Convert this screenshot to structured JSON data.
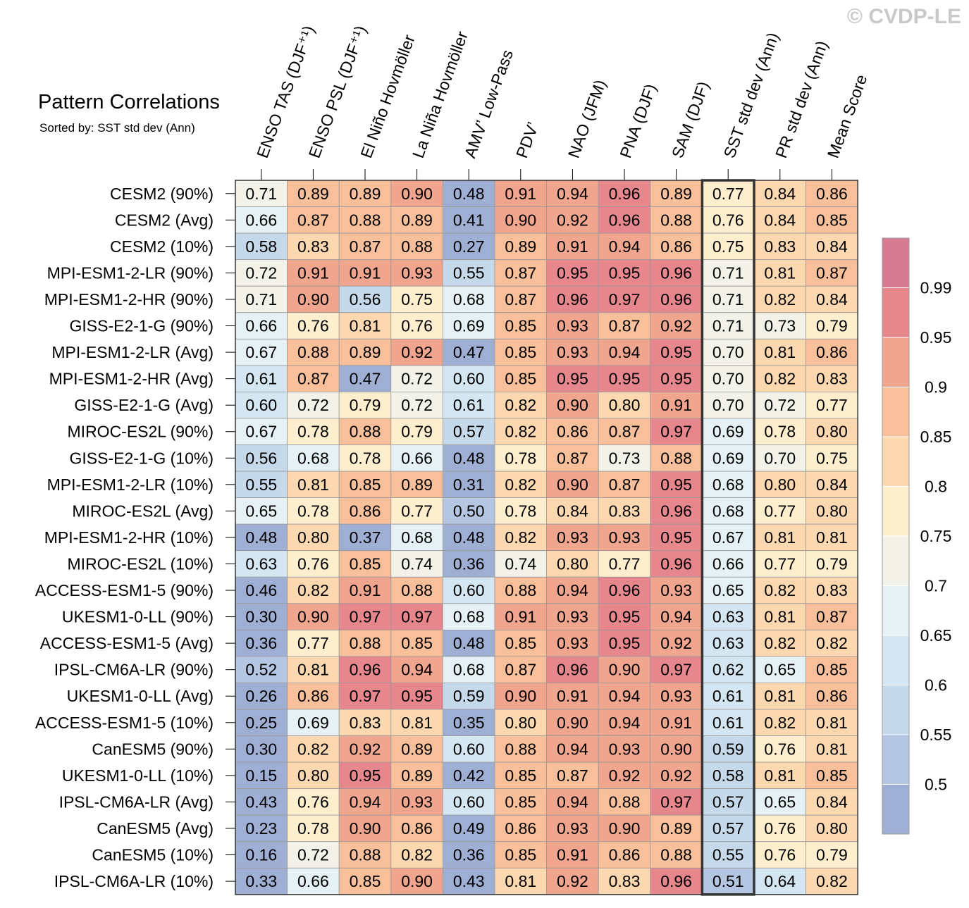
{
  "chart_data": {
    "type": "heatmap",
    "title": "Pattern Correlations",
    "subtitle": "Sorted by: SST std dev (Ann)",
    "copyright": "© CVDP-LE",
    "highlight_column": "SST std dev (Ann)",
    "columns": [
      "ENSO TAS (DJF⁺¹)",
      "ENSO PSL (DJF⁺¹)",
      "El Niño Hovmöller",
      "La Niña Hovmöller",
      "AMV’ Low-Pass",
      "PDV’",
      "NAO (JFM)",
      "PNA (DJF)",
      "SAM (DJF)",
      "SST std dev (Ann)",
      "PR std dev (Ann)",
      "Mean Score"
    ],
    "rows": [
      {
        "label": "CESM2 (90%)",
        "values": [
          "0.71",
          "0.89",
          "0.89",
          "0.90",
          "0.48",
          "0.91",
          "0.94",
          "0.96",
          "0.89",
          "0.77",
          "0.84",
          "0.86"
        ]
      },
      {
        "label": "CESM2 (Avg)",
        "values": [
          "0.66",
          "0.87",
          "0.88",
          "0.89",
          "0.41",
          "0.90",
          "0.92",
          "0.96",
          "0.88",
          "0.76",
          "0.84",
          "0.85"
        ]
      },
      {
        "label": "CESM2 (10%)",
        "values": [
          "0.58",
          "0.83",
          "0.87",
          "0.88",
          "0.27",
          "0.89",
          "0.91",
          "0.94",
          "0.86",
          "0.75",
          "0.83",
          "0.84"
        ]
      },
      {
        "label": "MPI-ESM1-2-LR (90%)",
        "values": [
          "0.72",
          "0.91",
          "0.91",
          "0.93",
          "0.55",
          "0.87",
          "0.95",
          "0.95",
          "0.96",
          "0.71",
          "0.81",
          "0.87"
        ]
      },
      {
        "label": "MPI-ESM1-2-HR (90%)",
        "values": [
          "0.71",
          "0.90",
          "0.56",
          "0.75",
          "0.68",
          "0.87",
          "0.96",
          "0.97",
          "0.96",
          "0.71",
          "0.82",
          "0.84"
        ]
      },
      {
        "label": "GISS-E2-1-G (90%)",
        "values": [
          "0.66",
          "0.76",
          "0.81",
          "0.76",
          "0.69",
          "0.85",
          "0.93",
          "0.87",
          "0.92",
          "0.71",
          "0.73",
          "0.79"
        ]
      },
      {
        "label": "MPI-ESM1-2-LR (Avg)",
        "values": [
          "0.67",
          "0.88",
          "0.89",
          "0.92",
          "0.47",
          "0.85",
          "0.93",
          "0.94",
          "0.95",
          "0.70",
          "0.81",
          "0.86"
        ]
      },
      {
        "label": "MPI-ESM1-2-HR (Avg)",
        "values": [
          "0.61",
          "0.87",
          "0.47",
          "0.72",
          "0.60",
          "0.85",
          "0.95",
          "0.95",
          "0.95",
          "0.70",
          "0.82",
          "0.83"
        ]
      },
      {
        "label": "GISS-E2-1-G (Avg)",
        "values": [
          "0.60",
          "0.72",
          "0.79",
          "0.72",
          "0.61",
          "0.82",
          "0.90",
          "0.80",
          "0.91",
          "0.70",
          "0.72",
          "0.77"
        ]
      },
      {
        "label": "MIROC-ES2L (90%)",
        "values": [
          "0.67",
          "0.78",
          "0.88",
          "0.79",
          "0.57",
          "0.82",
          "0.86",
          "0.87",
          "0.97",
          "0.69",
          "0.78",
          "0.80"
        ]
      },
      {
        "label": "GISS-E2-1-G (10%)",
        "values": [
          "0.56",
          "0.68",
          "0.78",
          "0.66",
          "0.48",
          "0.78",
          "0.87",
          "0.73",
          "0.88",
          "0.69",
          "0.70",
          "0.75"
        ]
      },
      {
        "label": "MPI-ESM1-2-LR (10%)",
        "values": [
          "0.55",
          "0.81",
          "0.85",
          "0.89",
          "0.31",
          "0.82",
          "0.90",
          "0.87",
          "0.95",
          "0.68",
          "0.80",
          "0.84"
        ]
      },
      {
        "label": "MIROC-ES2L (Avg)",
        "values": [
          "0.65",
          "0.78",
          "0.86",
          "0.77",
          "0.50",
          "0.78",
          "0.84",
          "0.83",
          "0.96",
          "0.68",
          "0.77",
          "0.80"
        ]
      },
      {
        "label": "MPI-ESM1-2-HR (10%)",
        "values": [
          "0.48",
          "0.80",
          "0.37",
          "0.68",
          "0.48",
          "0.82",
          "0.93",
          "0.93",
          "0.95",
          "0.67",
          "0.81",
          "0.81"
        ]
      },
      {
        "label": "MIROC-ES2L (10%)",
        "values": [
          "0.63",
          "0.76",
          "0.85",
          "0.74",
          "0.36",
          "0.74",
          "0.80",
          "0.77",
          "0.96",
          "0.66",
          "0.77",
          "0.79"
        ]
      },
      {
        "label": "ACCESS-ESM1-5 (90%)",
        "values": [
          "0.46",
          "0.82",
          "0.91",
          "0.88",
          "0.60",
          "0.88",
          "0.94",
          "0.96",
          "0.93",
          "0.65",
          "0.82",
          "0.83"
        ]
      },
      {
        "label": "UKESM1-0-LL (90%)",
        "values": [
          "0.30",
          "0.90",
          "0.97",
          "0.97",
          "0.68",
          "0.91",
          "0.93",
          "0.95",
          "0.94",
          "0.63",
          "0.81",
          "0.87"
        ]
      },
      {
        "label": "ACCESS-ESM1-5 (Avg)",
        "values": [
          "0.36",
          "0.77",
          "0.88",
          "0.85",
          "0.48",
          "0.85",
          "0.93",
          "0.95",
          "0.92",
          "0.63",
          "0.82",
          "0.82"
        ]
      },
      {
        "label": "IPSL-CM6A-LR (90%)",
        "values": [
          "0.52",
          "0.81",
          "0.96",
          "0.94",
          "0.68",
          "0.87",
          "0.96",
          "0.90",
          "0.97",
          "0.62",
          "0.65",
          "0.85"
        ]
      },
      {
        "label": "UKESM1-0-LL (Avg)",
        "values": [
          "0.26",
          "0.86",
          "0.97",
          "0.95",
          "0.59",
          "0.90",
          "0.91",
          "0.94",
          "0.93",
          "0.61",
          "0.81",
          "0.86"
        ]
      },
      {
        "label": "ACCESS-ESM1-5 (10%)",
        "values": [
          "0.25",
          "0.69",
          "0.83",
          "0.81",
          "0.35",
          "0.80",
          "0.90",
          "0.94",
          "0.91",
          "0.61",
          "0.82",
          "0.81"
        ]
      },
      {
        "label": "CanESM5 (90%)",
        "values": [
          "0.30",
          "0.82",
          "0.92",
          "0.89",
          "0.60",
          "0.88",
          "0.94",
          "0.93",
          "0.90",
          "0.59",
          "0.76",
          "0.81"
        ]
      },
      {
        "label": "UKESM1-0-LL (10%)",
        "values": [
          "0.15",
          "0.80",
          "0.95",
          "0.89",
          "0.42",
          "0.85",
          "0.87",
          "0.92",
          "0.92",
          "0.58",
          "0.81",
          "0.85"
        ]
      },
      {
        "label": "IPSL-CM6A-LR (Avg)",
        "values": [
          "0.43",
          "0.76",
          "0.94",
          "0.93",
          "0.60",
          "0.85",
          "0.94",
          "0.88",
          "0.97",
          "0.57",
          "0.65",
          "0.84"
        ]
      },
      {
        "label": "CanESM5 (Avg)",
        "values": [
          "0.23",
          "0.78",
          "0.90",
          "0.86",
          "0.49",
          "0.86",
          "0.93",
          "0.90",
          "0.89",
          "0.57",
          "0.76",
          "0.80"
        ]
      },
      {
        "label": "CanESM5 (10%)",
        "values": [
          "0.16",
          "0.72",
          "0.88",
          "0.82",
          "0.36",
          "0.85",
          "0.91",
          "0.86",
          "0.88",
          "0.55",
          "0.76",
          "0.79"
        ]
      },
      {
        "label": "IPSL-CM6A-LR (10%)",
        "values": [
          "0.33",
          "0.66",
          "0.85",
          "0.90",
          "0.43",
          "0.81",
          "0.92",
          "0.83",
          "0.96",
          "0.51",
          "0.64",
          "0.82"
        ]
      }
    ],
    "colorbar": {
      "labels": [
        "0.99",
        "0.95",
        "0.9",
        "0.85",
        "0.8",
        "0.75",
        "0.7",
        "0.65",
        "0.6",
        "0.55",
        "0.5"
      ],
      "thresholds": [
        0.5,
        0.55,
        0.6,
        0.65,
        0.7,
        0.75,
        0.8,
        0.85,
        0.9,
        0.95,
        0.99
      ],
      "colors": [
        "#9fafd4",
        "#b4c6e2",
        "#c5d9ea",
        "#d4e6f1",
        "#e6f1f6",
        "#f3f2e8",
        "#fdefcd",
        "#fcd8b1",
        "#f7bf9a",
        "#f0a58f",
        "#e6878d",
        "#d67b92"
      ]
    }
  }
}
